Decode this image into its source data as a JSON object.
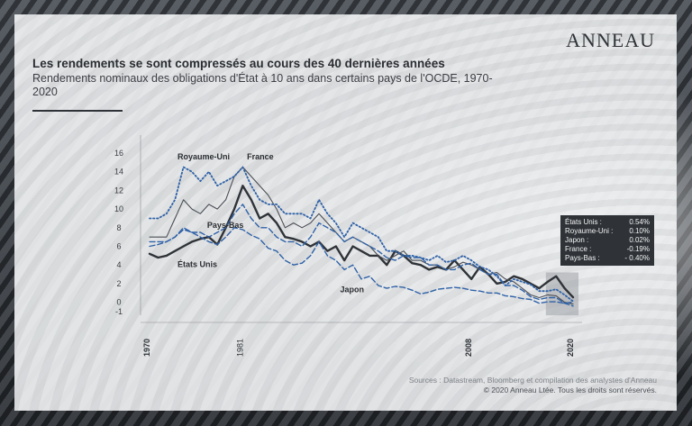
{
  "brand": {
    "logo": "ANNEAU"
  },
  "header": {
    "title": "Les rendements se sont compressés au cours des 40 dernières années",
    "subtitle": "Rendements nominaux des obligations d'État à 10 ans dans certains pays de l'OCDE, 1970-2020"
  },
  "legend_box": {
    "rows": [
      {
        "label": "États Unis :",
        "value": "0.54%"
      },
      {
        "label": "Royaume-Uni :",
        "value": "0.10%"
      },
      {
        "label": "Japon :",
        "value": "0.02%"
      },
      {
        "label": "France :",
        "value": "-0.19%"
      },
      {
        "label": "Pays-Bas :",
        "value": "- 0.40%"
      }
    ]
  },
  "footer": {
    "sources": "Sources : Datastream, Bloomberg et compilation des analystes d'Anneau",
    "copyright": "© 2020 Anneau Ltée. Tous les droits sont réservés."
  },
  "colors": {
    "us": "#2f3338",
    "fr": "#4a4e54",
    "uk": "#2f62a8",
    "nl": "#2f62a8",
    "jp": "#2f62a8",
    "highlight": "#9da1a6"
  },
  "chart_data": {
    "type": "line",
    "title": "Les rendements se sont compressés au cours des 40 dernières années",
    "ylim": [
      -1,
      16
    ],
    "yticks": [
      "16",
      "14",
      "12",
      "10",
      "8",
      "6",
      "4",
      "2",
      "0",
      "-1"
    ],
    "xlim": [
      1970,
      2020
    ],
    "xticks": [
      "1970",
      "1981",
      "2008",
      "2020"
    ],
    "series": [
      {
        "name": "États Unis",
        "style": "thick",
        "x": [
          1970,
          1971,
          1972,
          1973,
          1974,
          1975,
          1976,
          1977,
          1978,
          1979,
          1980,
          1981,
          1982,
          1983,
          1984,
          1985,
          1986,
          1987,
          1988,
          1989,
          1990,
          1991,
          1992,
          1993,
          1994,
          1995,
          1996,
          1997,
          1998,
          1999,
          2000,
          2001,
          2002,
          2003,
          2004,
          2005,
          2006,
          2007,
          2008,
          2009,
          2010,
          2011,
          2012,
          2013,
          2014,
          2015,
          2016,
          2017,
          2018,
          2019,
          2020
        ],
        "values": [
          5.2,
          4.8,
          5.0,
          5.5,
          6.0,
          6.5,
          6.8,
          7.0,
          6.2,
          8.0,
          10.0,
          12.5,
          11.0,
          9.0,
          9.5,
          8.5,
          7.0,
          6.8,
          6.5,
          6.0,
          6.5,
          5.5,
          6.0,
          4.5,
          6.0,
          5.5,
          5.0,
          5.0,
          4.0,
          5.5,
          5.0,
          4.2,
          4.0,
          3.5,
          3.8,
          3.5,
          4.5,
          3.5,
          2.5,
          3.8,
          3.0,
          2.0,
          2.2,
          2.8,
          2.5,
          2.0,
          1.5,
          2.2,
          2.8,
          1.5,
          0.54
        ]
      },
      {
        "name": "France",
        "style": "thin",
        "x": [
          1970,
          1971,
          1972,
          1973,
          1974,
          1975,
          1976,
          1977,
          1978,
          1979,
          1980,
          1981,
          1982,
          1983,
          1984,
          1985,
          1986,
          1987,
          1988,
          1989,
          1990,
          1991,
          1992,
          1993,
          1994,
          1995,
          1996,
          1997,
          1998,
          1999,
          2000,
          2001,
          2002,
          2003,
          2004,
          2005,
          2006,
          2007,
          2008,
          2009,
          2010,
          2011,
          2012,
          2013,
          2014,
          2015,
          2016,
          2017,
          2018,
          2019,
          2020
        ],
        "values": [
          7.0,
          7.0,
          7.0,
          9.0,
          11.0,
          10.0,
          9.5,
          10.5,
          10.0,
          11.0,
          13.5,
          14.5,
          13.5,
          12.5,
          11.5,
          10.0,
          8.0,
          8.5,
          8.0,
          8.5,
          9.5,
          8.5,
          7.5,
          6.5,
          7.0,
          6.5,
          6.0,
          5.0,
          4.5,
          5.0,
          5.5,
          4.5,
          4.5,
          4.0,
          4.0,
          3.5,
          3.8,
          4.3,
          4.0,
          3.5,
          3.0,
          3.2,
          2.5,
          2.2,
          1.5,
          0.8,
          0.5,
          0.8,
          0.7,
          0.0,
          -0.19
        ]
      },
      {
        "name": "Royaume-Uni",
        "style": "dotted",
        "x": [
          1970,
          1971,
          1972,
          1973,
          1974,
          1975,
          1976,
          1977,
          1978,
          1979,
          1980,
          1981,
          1982,
          1983,
          1984,
          1985,
          1986,
          1987,
          1988,
          1989,
          1990,
          1991,
          1992,
          1993,
          1994,
          1995,
          1996,
          1997,
          1998,
          1999,
          2000,
          2001,
          2002,
          2003,
          2004,
          2005,
          2006,
          2007,
          2008,
          2009,
          2010,
          2011,
          2012,
          2013,
          2014,
          2015,
          2016,
          2017,
          2018,
          2019,
          2020
        ],
        "values": [
          9.0,
          9.0,
          9.5,
          11.0,
          14.5,
          14.0,
          13.0,
          14.0,
          12.5,
          13.0,
          13.5,
          14.5,
          12.5,
          11.0,
          10.5,
          10.5,
          9.5,
          9.5,
          9.5,
          9.0,
          11.0,
          9.5,
          8.5,
          7.0,
          8.5,
          8.0,
          7.5,
          7.0,
          5.5,
          5.5,
          5.0,
          5.0,
          4.8,
          4.5,
          5.0,
          4.3,
          4.5,
          5.0,
          4.5,
          3.8,
          3.5,
          2.8,
          1.8,
          2.5,
          2.2,
          1.9,
          1.2,
          1.2,
          1.4,
          0.8,
          0.1
        ]
      },
      {
        "name": "Pays-Bas",
        "style": "dashed",
        "x": [
          1970,
          1971,
          1972,
          1973,
          1974,
          1975,
          1976,
          1977,
          1978,
          1979,
          1980,
          1981,
          1982,
          1983,
          1984,
          1985,
          1986,
          1987,
          1988,
          1989,
          1990,
          1991,
          1992,
          1993,
          1994,
          1995,
          1996,
          1997,
          1998,
          1999,
          2000,
          2001,
          2002,
          2003,
          2004,
          2005,
          2006,
          2007,
          2008,
          2009,
          2010,
          2011,
          2012,
          2013,
          2014,
          2015,
          2016,
          2017,
          2018,
          2019,
          2020
        ],
        "values": [
          6.5,
          6.5,
          6.5,
          7.0,
          8.0,
          7.5,
          7.5,
          7.0,
          7.5,
          8.0,
          9.5,
          10.5,
          9.0,
          8.0,
          8.0,
          7.0,
          6.5,
          6.5,
          6.0,
          7.0,
          8.5,
          8.0,
          7.5,
          6.5,
          7.0,
          6.5,
          6.0,
          5.5,
          4.8,
          4.5,
          5.0,
          4.8,
          4.8,
          4.0,
          4.0,
          3.5,
          3.5,
          4.0,
          4.2,
          3.5,
          3.0,
          3.0,
          1.8,
          1.8,
          1.3,
          0.6,
          0.3,
          0.5,
          0.5,
          -0.1,
          -0.4
        ]
      },
      {
        "name": "Japon",
        "style": "dashed",
        "x": [
          1970,
          1971,
          1972,
          1973,
          1974,
          1975,
          1976,
          1977,
          1978,
          1979,
          1980,
          1981,
          1982,
          1983,
          1984,
          1985,
          1986,
          1987,
          1988,
          1989,
          1990,
          1991,
          1992,
          1993,
          1994,
          1995,
          1996,
          1997,
          1998,
          1999,
          2000,
          2001,
          2002,
          2003,
          2004,
          2005,
          2006,
          2007,
          2008,
          2009,
          2010,
          2011,
          2012,
          2013,
          2014,
          2015,
          2016,
          2017,
          2018,
          2019,
          2020
        ],
        "values": [
          6.0,
          6.2,
          6.5,
          7.0,
          7.8,
          7.5,
          7.0,
          6.5,
          6.2,
          7.0,
          8.0,
          7.8,
          7.2,
          6.8,
          5.8,
          5.5,
          4.5,
          4.0,
          4.2,
          5.0,
          6.5,
          5.0,
          4.5,
          3.5,
          4.0,
          2.5,
          2.8,
          1.8,
          1.5,
          1.7,
          1.6,
          1.3,
          0.9,
          1.1,
          1.4,
          1.5,
          1.6,
          1.5,
          1.3,
          1.2,
          1.0,
          1.0,
          0.7,
          0.6,
          0.4,
          0.3,
          -0.1,
          0.05,
          0.05,
          -0.1,
          0.02
        ]
      }
    ],
    "annotations": [
      {
        "text": "Royaume-Uni",
        "series": "Royaume-Uni"
      },
      {
        "text": "France",
        "series": "France"
      },
      {
        "text": "Pays-Bas",
        "series": "Pays-Bas"
      },
      {
        "text": "États Unis",
        "series": "États Unis"
      },
      {
        "text": "Japon",
        "series": "Japon"
      }
    ],
    "highlight_range": [
      2017,
      2020
    ],
    "grid": false
  }
}
